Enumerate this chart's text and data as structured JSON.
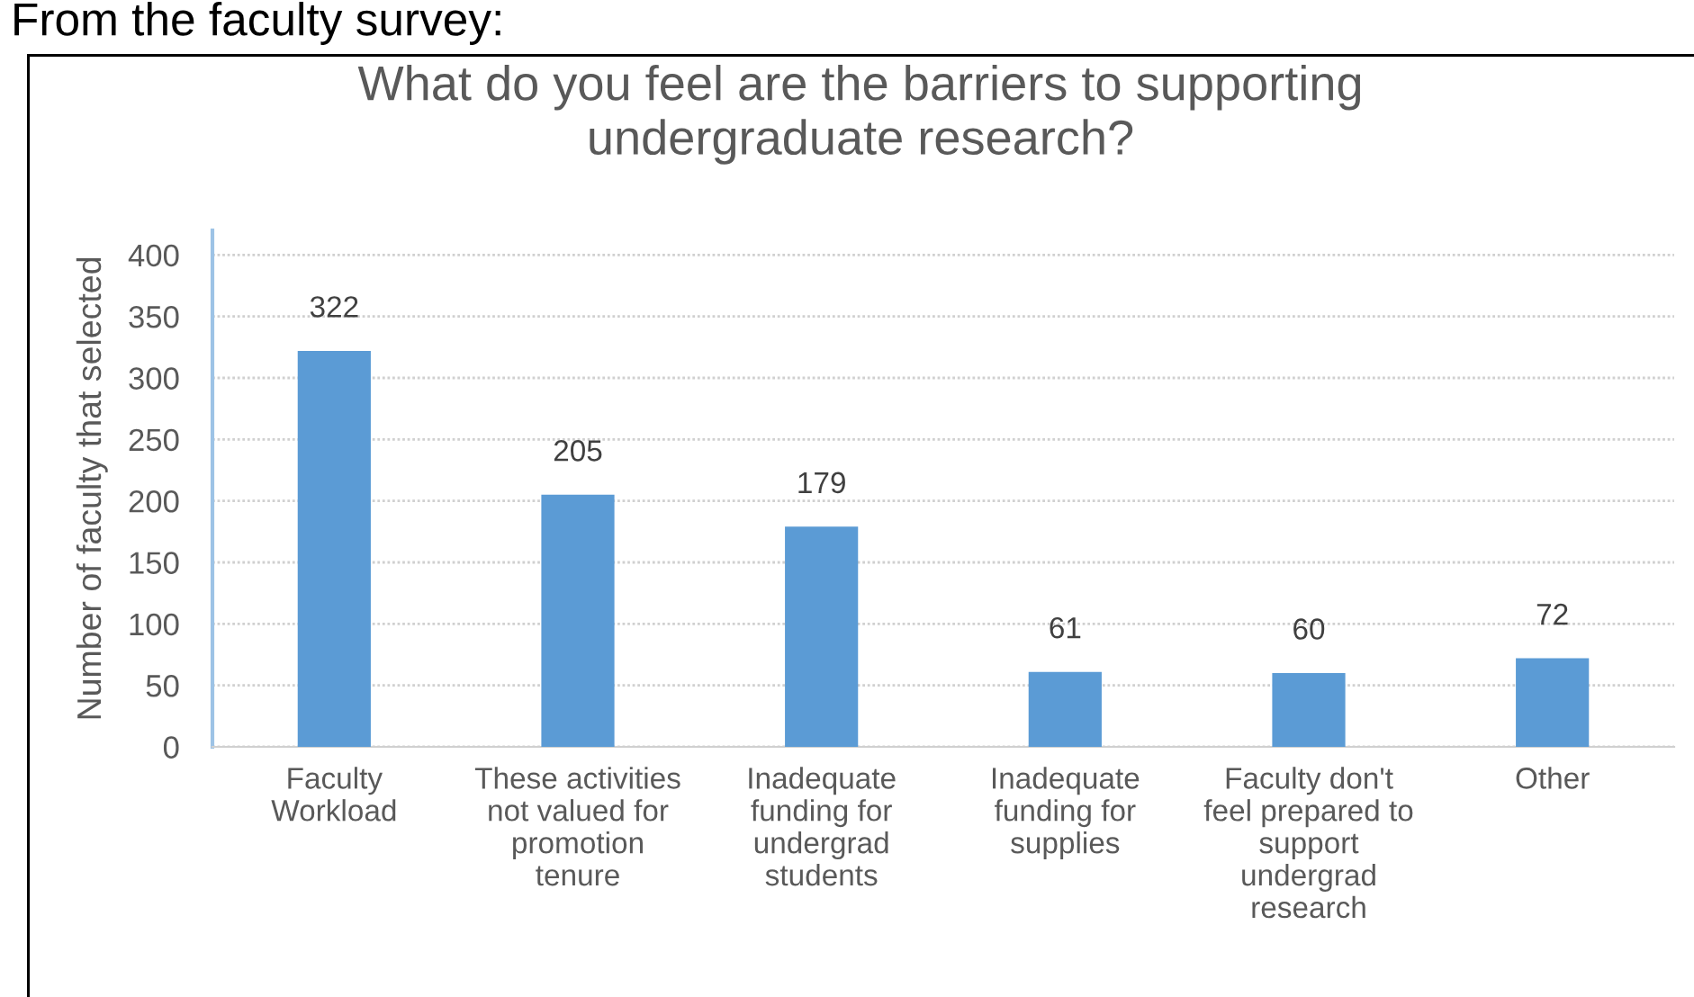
{
  "chart_data": {
    "type": "bar",
    "title": "What do you feel are the barriers to supporting\nundergraduate research?",
    "ylabel": "Number of faculty that selected",
    "annotations": [
      "From the faculty survey:"
    ],
    "categories": [
      "Faculty\nWorkload",
      "These activities\nnot valued for\npromotion\ntenure",
      "Inadequate\nfunding for\nundergrad\nstudents",
      "Inadequate\nfunding for\nsupplies",
      "Faculty don't\nfeel prepared to\nsupport\nundergrad\nresearch",
      "Other"
    ],
    "values": [
      322,
      205,
      179,
      61,
      60,
      72
    ],
    "color": "#5b9bd5",
    "ylim": [
      0,
      420
    ],
    "yticks": [
      0,
      50,
      100,
      150,
      200,
      250,
      300,
      350,
      400
    ],
    "grid": "y",
    "data_labels": true
  }
}
